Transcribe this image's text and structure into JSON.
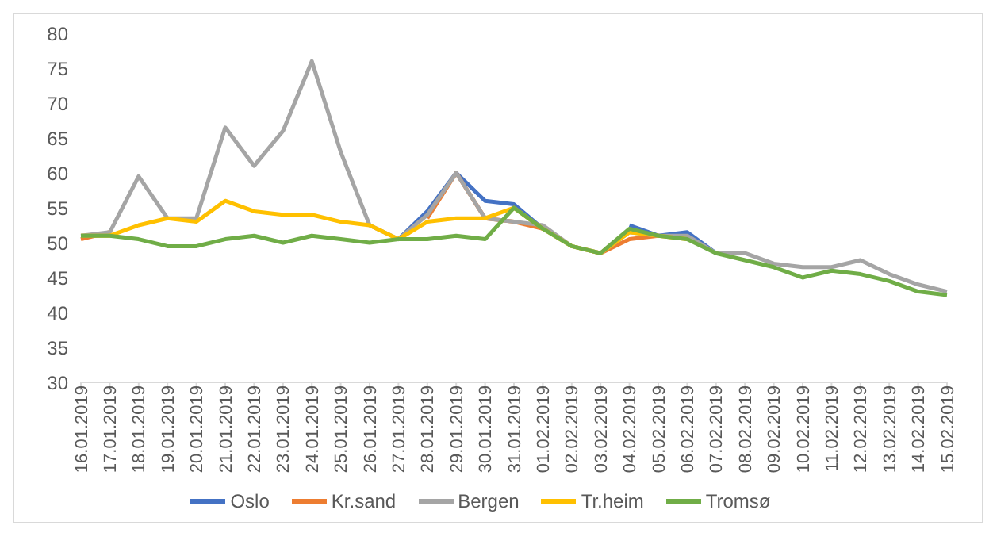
{
  "chart_data": {
    "type": "line",
    "categories": [
      "16.01.2019",
      "17.01.2019",
      "18.01.2019",
      "19.01.2019",
      "20.01.2019",
      "21.01.2019",
      "22.01.2019",
      "23.01.2019",
      "24.01.2019",
      "25.01.2019",
      "26.01.2019",
      "27.01.2019",
      "28.01.2019",
      "29.01.2019",
      "30.01.2019",
      "31.01.2019",
      "01.02.2019",
      "02.02.2019",
      "03.02.2019",
      "04.02.2019",
      "05.02.2019",
      "06.02.2019",
      "07.02.2019",
      "08.02.2019",
      "09.02.2019",
      "10.02.2019",
      "11.02.2019",
      "12.02.2019",
      "13.02.2019",
      "14.02.2019",
      "15.02.2019"
    ],
    "series": [
      {
        "name": "Oslo",
        "color": "#4472c4",
        "values": [
          null,
          null,
          null,
          null,
          null,
          null,
          null,
          null,
          null,
          null,
          null,
          50.5,
          54.5,
          60,
          56,
          55.5,
          52,
          null,
          null,
          52.5,
          51,
          51.5,
          48.5,
          null,
          null,
          null,
          null,
          null,
          null,
          null,
          null
        ]
      },
      {
        "name": "Kr.sand",
        "color": "#ed7d31",
        "values": [
          50.5,
          51.5,
          null,
          null,
          null,
          null,
          null,
          null,
          null,
          null,
          null,
          null,
          53.5,
          60,
          53.5,
          53,
          52,
          null,
          48.5,
          50.5,
          51,
          null,
          null,
          null,
          null,
          null,
          null,
          null,
          null,
          null,
          null
        ]
      },
      {
        "name": "Bergen",
        "color": "#a5a5a5",
        "values": [
          51,
          51.5,
          59.5,
          53.5,
          53.5,
          66.5,
          61,
          66,
          76,
          63,
          52.5,
          50.5,
          54,
          60,
          53.5,
          53,
          52.5,
          49.5,
          48.5,
          51.5,
          51,
          51,
          48.5,
          48.5,
          47,
          46.5,
          46.5,
          47.5,
          45.5,
          44,
          43
        ]
      },
      {
        "name": "Tr.heim",
        "color": "#ffc000",
        "values": [
          51,
          51,
          52.5,
          53.5,
          53,
          56,
          54.5,
          54,
          54,
          53,
          52.5,
          50.5,
          53,
          53.5,
          53.5,
          55,
          52,
          49.5,
          48.5,
          51.5,
          51,
          50.5,
          null,
          null,
          null,
          null,
          null,
          null,
          null,
          null,
          null
        ]
      },
      {
        "name": "Tromsø",
        "color": "#70ad47",
        "values": [
          51,
          51,
          50.5,
          49.5,
          49.5,
          50.5,
          51,
          50,
          51,
          50.5,
          50,
          50.5,
          50.5,
          51,
          50.5,
          55,
          52,
          49.5,
          48.5,
          52,
          51,
          50.5,
          48.5,
          47.5,
          46.5,
          45,
          46,
          45.5,
          44.5,
          43,
          42.5
        ]
      }
    ],
    "ylim": [
      30,
      80
    ],
    "yticks": [
      30,
      35,
      40,
      45,
      50,
      55,
      60,
      65,
      70,
      75,
      80
    ],
    "legend": "bottom"
  }
}
